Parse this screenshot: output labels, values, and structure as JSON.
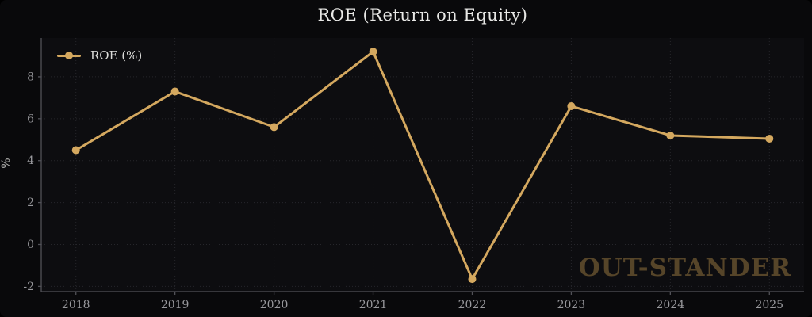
{
  "figure": {
    "title": "ROE (Return on Equity)",
    "watermark": "OUT-STANDER"
  },
  "legend": {
    "items": [
      {
        "label": "ROE (%)"
      }
    ]
  },
  "colors": {
    "line": "#d4a85f",
    "marker": "#d4a85f",
    "grid": "#26262b",
    "spine": "#515157",
    "tick_label": "#98989c",
    "title": "#e8e8e6",
    "watermark": "#564529",
    "plot_background": "#0d0d10",
    "figure_background": "#09090b"
  },
  "chart_data": {
    "type": "line",
    "title": "ROE (Return on Equity)",
    "xlabel": "",
    "ylabel": "%",
    "x": [
      2018,
      2019,
      2020,
      2021,
      2022,
      2023,
      2024,
      2025
    ],
    "series": [
      {
        "name": "ROE (%)",
        "values": [
          4.5,
          7.3,
          5.6,
          9.2,
          -1.65,
          6.6,
          5.2,
          5.05
        ]
      }
    ],
    "xlim": [
      2017.65,
      2025.35
    ],
    "ylim": [
      -2.25,
      9.85
    ],
    "yticks": [
      -2,
      0,
      2,
      4,
      6,
      8
    ],
    "grid": "dotted-both-axes",
    "legend_position": "upper-left",
    "marker": "circle",
    "line_width": 3,
    "marker_radius": 5
  }
}
